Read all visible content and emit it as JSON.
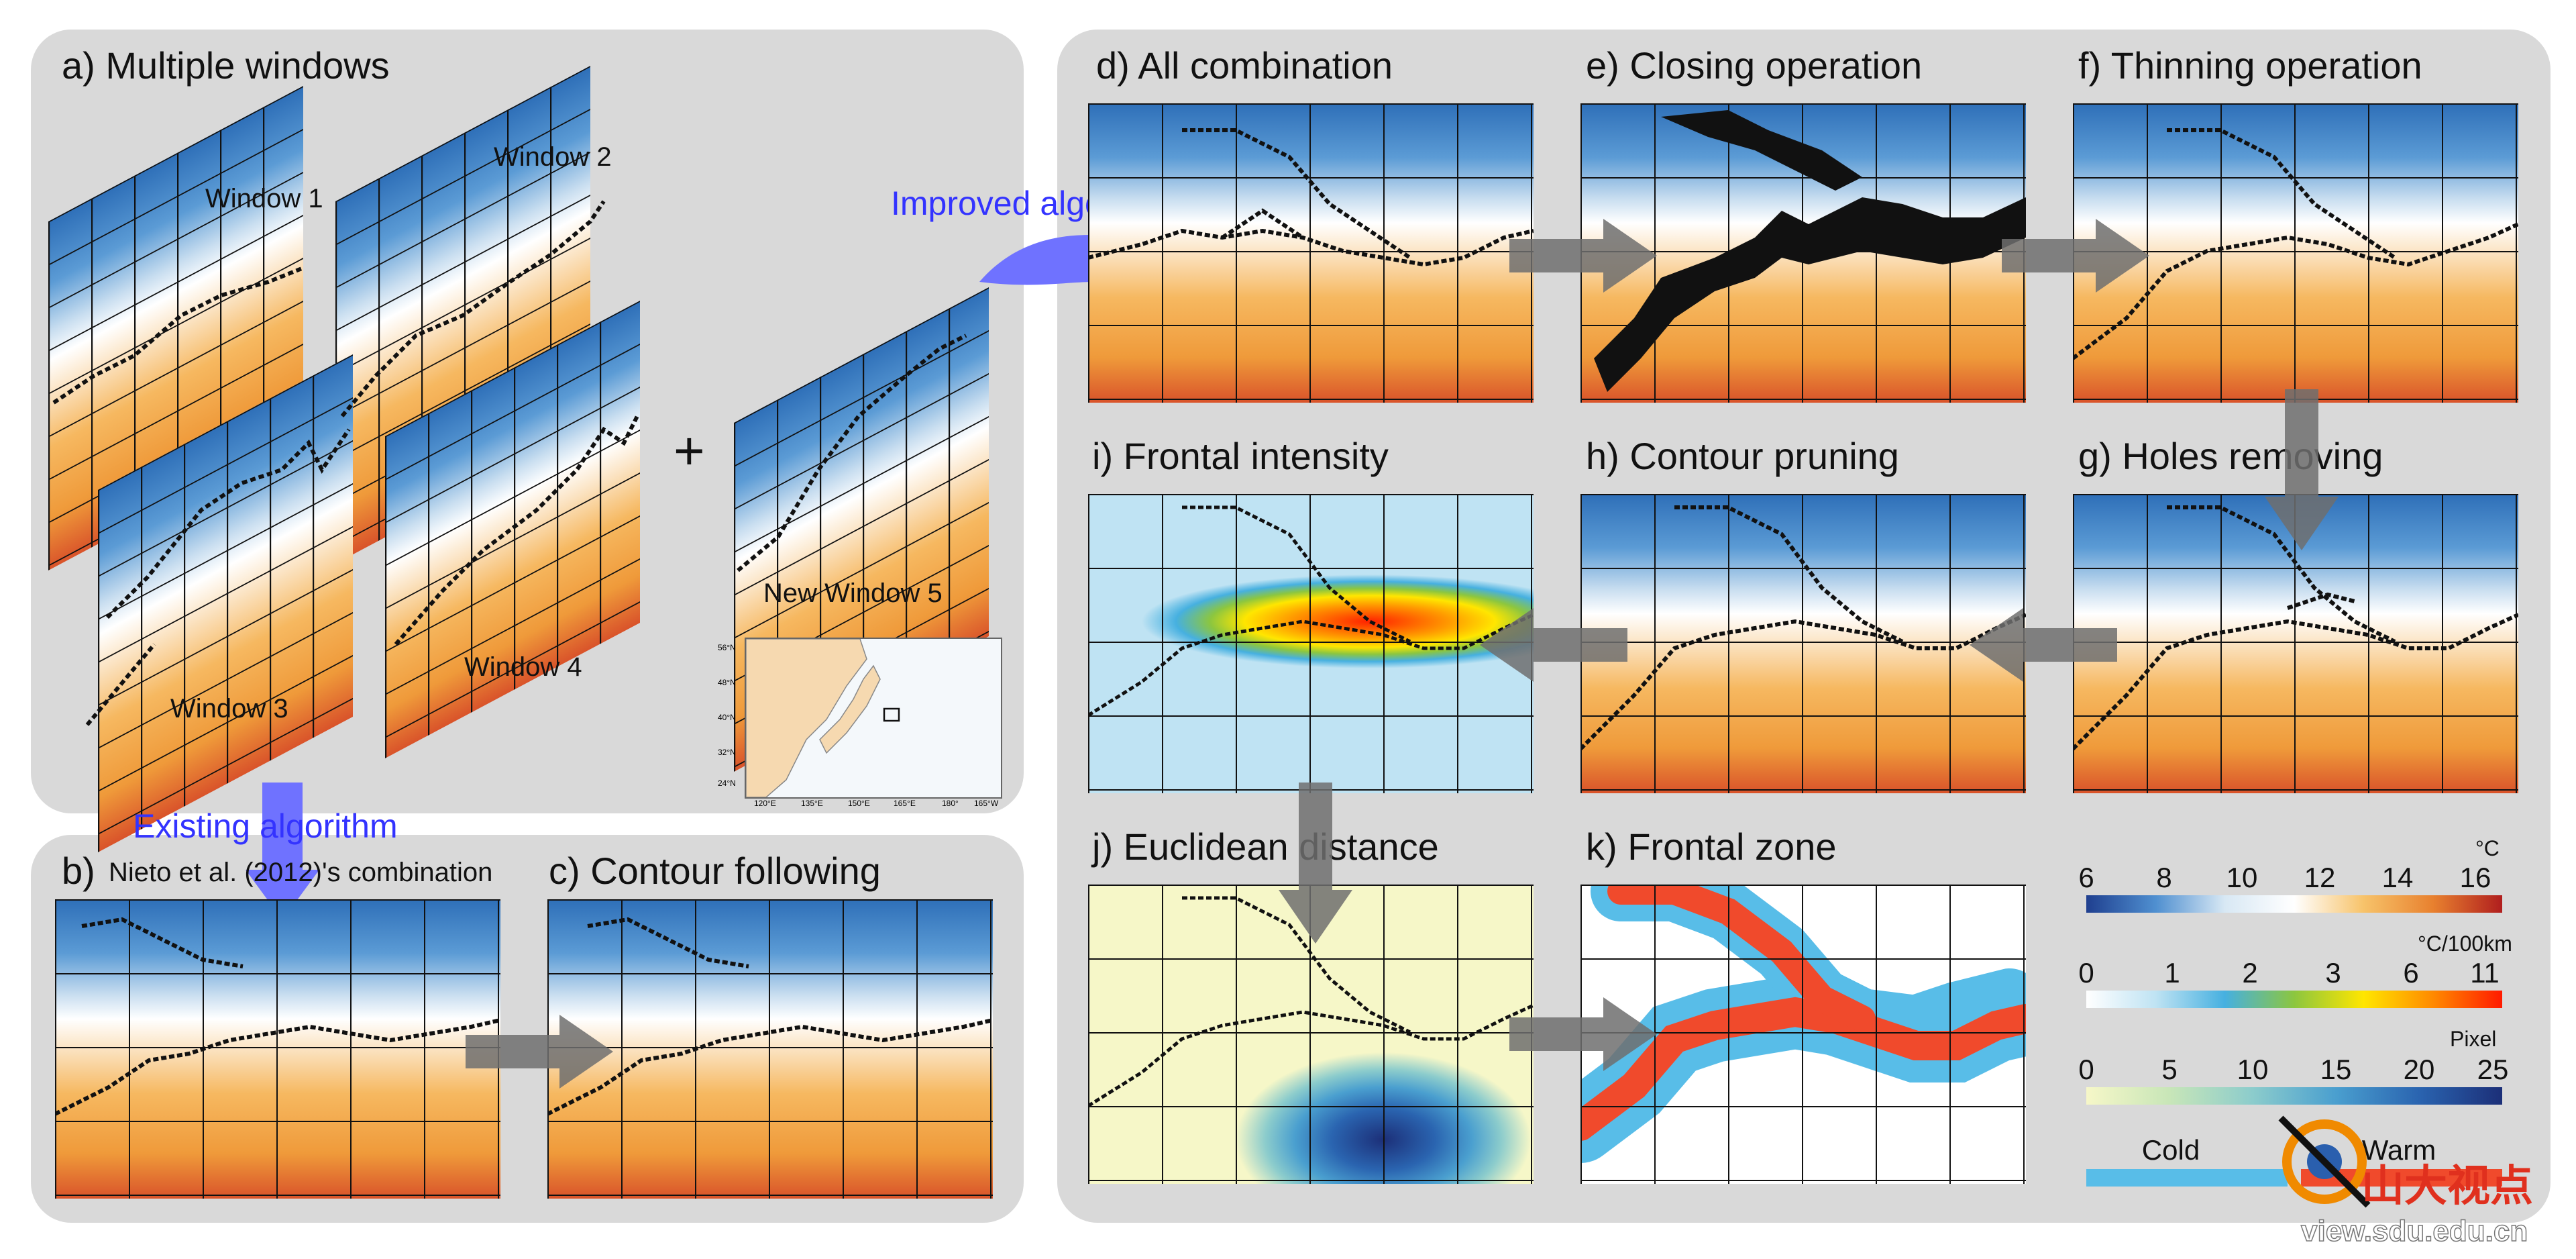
{
  "panels": {
    "a": "a) Multiple windows",
    "b_letter": "b)",
    "b_text": "Nieto et al. (2012)'s combination",
    "c": "c) Contour following",
    "d": "d) All combination",
    "e": "e) Closing operation",
    "f": "f) Thinning operation",
    "g": "g) Holes removing",
    "h": "h) Contour pruning",
    "i": "i) Frontal intensity",
    "j": "j) Euclidean distance",
    "k": "k) Frontal zone"
  },
  "windows": [
    "Window 1",
    "Window 2",
    "Window 3",
    "Window 4",
    "New Window 5"
  ],
  "plus": "+",
  "arrows": {
    "improved": "Improved algorithm",
    "existing": "Existing algorithm"
  },
  "inset_map": {
    "lat_labels": [
      "56°N",
      "48°N",
      "40°N",
      "32°N",
      "24°N"
    ],
    "lon_labels": [
      "120°E",
      "135°E",
      "150°E",
      "165°E",
      "180°",
      "165°W"
    ]
  },
  "colorbars": [
    {
      "unit": "°C",
      "ticks": [
        "6",
        "8",
        "10",
        "12",
        "14",
        "16"
      ],
      "colors": [
        "#1f3f8f",
        "#4f8fd0",
        "#d8e8f4",
        "#ffffff",
        "#f7c36a",
        "#e8812f",
        "#b01e1e"
      ]
    },
    {
      "unit": "°C/100km",
      "ticks": [
        "0",
        "1",
        "2",
        "3",
        "6",
        "11"
      ],
      "colors": [
        "#ffffff",
        "#bfe3f3",
        "#46b0e0",
        "#8cc63f",
        "#ffe600",
        "#ff8a00",
        "#ff1a00"
      ]
    },
    {
      "unit": "Pixel",
      "ticks": [
        "0",
        "5",
        "10",
        "15",
        "20",
        "25"
      ],
      "colors": [
        "#f6f7c8",
        "#c8e6b8",
        "#8ccccc",
        "#4a9fcf",
        "#2a64b0",
        "#1c2f78"
      ]
    },
    {
      "ticks": [
        "Cold",
        "Warm"
      ],
      "colors": [
        "#58bde8",
        "#f04a2c"
      ]
    }
  ],
  "watermark": {
    "logo_text": "山大视点",
    "url": "view.sdu.edu.cn"
  }
}
